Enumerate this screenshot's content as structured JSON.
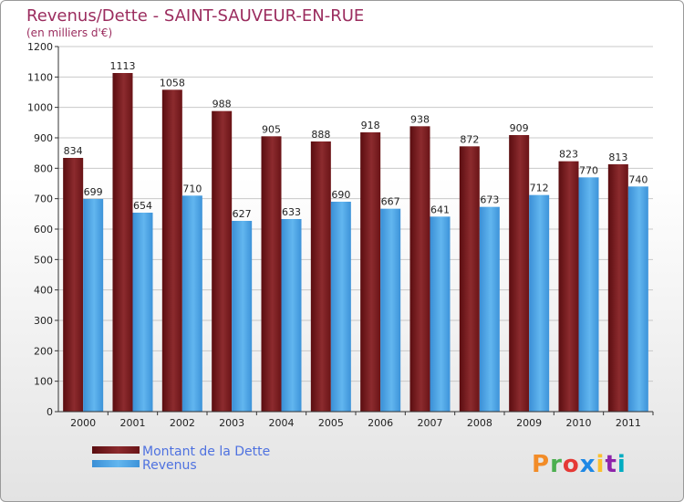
{
  "chart_data": {
    "type": "bar",
    "title": "Revenus/Dette - SAINT-SAUVEUR-EN-RUE",
    "subtitle": "(en milliers d'€)",
    "xlabel": "",
    "ylabel": "",
    "ylim": [
      0,
      1200
    ],
    "yticks": [
      0,
      100,
      200,
      300,
      400,
      500,
      600,
      700,
      800,
      900,
      1000,
      1100,
      1200
    ],
    "categories": [
      "2000",
      "2001",
      "2002",
      "2003",
      "2004",
      "2005",
      "2006",
      "2007",
      "2008",
      "2009",
      "2010",
      "2011"
    ],
    "series": [
      {
        "name": "Montant de la Dette",
        "color": "#7a1f22",
        "values": [
          834,
          1113,
          1058,
          988,
          905,
          888,
          918,
          938,
          872,
          909,
          823,
          813
        ]
      },
      {
        "name": "Revenus",
        "color": "#4ba3e3",
        "values": [
          699,
          654,
          710,
          627,
          633,
          690,
          667,
          641,
          673,
          712,
          770,
          740
        ]
      }
    ],
    "grid": true,
    "legend_position": "bottom-left"
  },
  "brand": {
    "logo_text": "Proxiti",
    "logo_colors": [
      "#f28c28",
      "#4caf50",
      "#e53935",
      "#1e88e5",
      "#fbc02d",
      "#8e24aa",
      "#00acc1"
    ]
  }
}
